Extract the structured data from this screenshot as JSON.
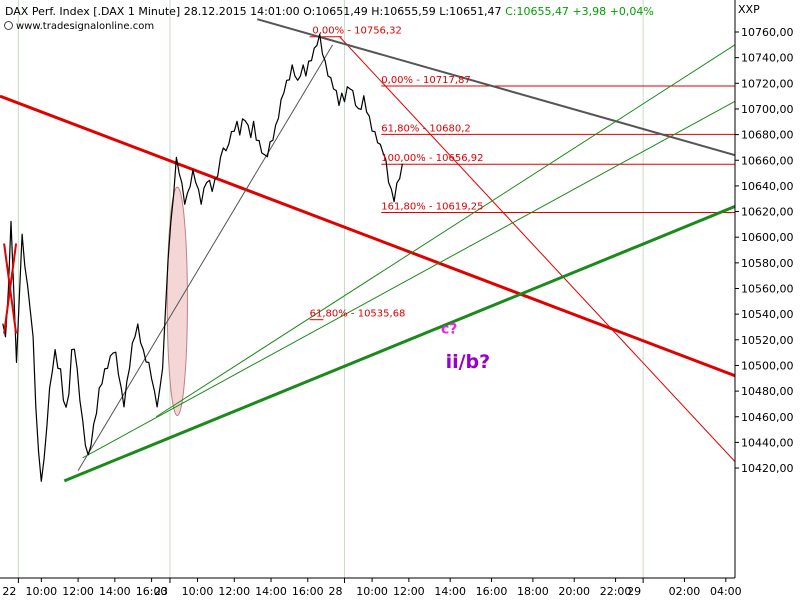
{
  "header": {
    "instrument": "DAX Perf. Index [.DAX",
    "interval": "1 Minute]",
    "datetime": "28.12.2015 14:01:00",
    "open": "O:10651,49",
    "high": "H:10655,59",
    "low": "L:10651,47",
    "close": "C:10655,47 +3,98 +0,04%",
    "source": "www.tradesignalonline.com",
    "currency": "XXP"
  },
  "colors": {
    "up_color": "#00a000",
    "price_line": "#000000",
    "red_thick": "#e00000",
    "red_thin": "#e00000",
    "green_thick": "#1a8a1a",
    "green_thin": "#1a8a1a",
    "gray_line": "#555555",
    "fib_line": "#e00000",
    "ellipse_fill": "#f5d6d6",
    "ellipse_stroke": "#c08080",
    "label_wave": "#9900cc",
    "label_c": "#ee22ee"
  },
  "chart_data": {
    "type": "line",
    "title": "DAX Perf. Index [.DAX 1 Minute]",
    "ylim": [
      10410,
      10770
    ],
    "y_ticks": [
      "10420,00",
      "10440,00",
      "10460,00",
      "10480,00",
      "10500,00",
      "10520,00",
      "10540,00",
      "10560,00",
      "10580,00",
      "10600,00",
      "10620,00",
      "10640,00",
      "10660,00",
      "10680,00",
      "10700,00",
      "10720,00",
      "10740,00",
      "10760,00"
    ],
    "x_axis": {
      "min": 0,
      "max": 80,
      "day_boundaries": [
        {
          "label": "22",
          "x": 2
        },
        {
          "label": "23",
          "x": 18.5
        },
        {
          "label": "28",
          "x": 37.5
        },
        {
          "label": "29",
          "x": 70
        }
      ],
      "ticks": [
        {
          "label": "10:00",
          "x": 4.5
        },
        {
          "label": "12:00",
          "x": 8.5
        },
        {
          "label": "14:00",
          "x": 12.5
        },
        {
          "label": "16:00",
          "x": 16.5
        },
        {
          "label": "10:00",
          "x": 21.5
        },
        {
          "label": "12:00",
          "x": 25.5
        },
        {
          "label": "14:00",
          "x": 29.5
        },
        {
          "label": "16:00",
          "x": 33.5
        },
        {
          "label": "10:00",
          "x": 40.5
        },
        {
          "label": "12:00",
          "x": 44.5
        },
        {
          "label": "14:00",
          "x": 49
        },
        {
          "label": "16:00",
          "x": 53.5
        },
        {
          "label": "18:00",
          "x": 58
        },
        {
          "label": "20:00",
          "x": 62.5
        },
        {
          "label": "22:00",
          "x": 67
        },
        {
          "label": "02:00",
          "x": 74.5
        },
        {
          "label": "04:00",
          "x": 79
        }
      ],
      "gridlines": [
        2,
        18.5,
        37.5,
        70
      ]
    },
    "series": [
      {
        "points": [
          [
            0.3,
            10535
          ],
          [
            0.6,
            10520
          ],
          [
            0.9,
            10560
          ],
          [
            1.2,
            10610
          ],
          [
            1.5,
            10560
          ],
          [
            1.8,
            10500
          ],
          [
            2.1,
            10555
          ],
          [
            2.4,
            10600
          ],
          [
            2.7,
            10580
          ],
          [
            3.0,
            10560
          ],
          [
            3.3,
            10545
          ],
          [
            3.6,
            10520
          ],
          [
            3.9,
            10470
          ],
          [
            4.2,
            10430
          ],
          [
            4.5,
            10412
          ],
          [
            4.8,
            10425
          ],
          [
            5.1,
            10455
          ],
          [
            5.4,
            10480
          ],
          [
            5.7,
            10498
          ],
          [
            6.0,
            10510
          ],
          [
            6.3,
            10500
          ],
          [
            6.6,
            10495
          ],
          [
            6.9,
            10475
          ],
          [
            7.2,
            10465
          ],
          [
            7.5,
            10480
          ],
          [
            7.8,
            10510
          ],
          [
            8.1,
            10515
          ],
          [
            8.4,
            10495
          ],
          [
            8.7,
            10475
          ],
          [
            9.0,
            10455
          ],
          [
            9.3,
            10440
          ],
          [
            9.6,
            10428
          ],
          [
            9.9,
            10440
          ],
          [
            10.2,
            10452
          ],
          [
            10.5,
            10465
          ],
          [
            10.8,
            10480
          ],
          [
            11.1,
            10488
          ],
          [
            11.4,
            10495
          ],
          [
            11.7,
            10500
          ],
          [
            12.0,
            10505
          ],
          [
            12.3,
            10512
          ],
          [
            12.6,
            10508
          ],
          [
            12.9,
            10495
          ],
          [
            13.2,
            10480
          ],
          [
            13.5,
            10470
          ],
          [
            13.8,
            10485
          ],
          [
            14.1,
            10500
          ],
          [
            14.4,
            10515
          ],
          [
            14.7,
            10525
          ],
          [
            15.0,
            10530
          ],
          [
            15.3,
            10520
          ],
          [
            15.6,
            10510
          ],
          [
            15.9,
            10505
          ],
          [
            16.2,
            10500
          ],
          [
            16.5,
            10492
          ],
          [
            16.8,
            10478
          ],
          [
            17.1,
            10470
          ],
          [
            17.4,
            10480
          ],
          [
            17.7,
            10500
          ],
          [
            18.0,
            10540
          ],
          [
            18.3,
            10585
          ],
          [
            18.6,
            10610
          ],
          [
            18.9,
            10635
          ],
          [
            19.2,
            10660
          ],
          [
            19.5,
            10652
          ],
          [
            19.8,
            10640
          ],
          [
            20.1,
            10628
          ],
          [
            20.4,
            10632
          ],
          [
            20.7,
            10642
          ],
          [
            21.0,
            10650
          ],
          [
            21.3,
            10645
          ],
          [
            21.6,
            10635
          ],
          [
            21.9,
            10628
          ],
          [
            22.2,
            10636
          ],
          [
            22.5,
            10645
          ],
          [
            22.8,
            10642
          ],
          [
            23.1,
            10638
          ],
          [
            23.4,
            10643
          ],
          [
            23.7,
            10650
          ],
          [
            24.0,
            10660
          ],
          [
            24.3,
            10672
          ],
          [
            24.6,
            10665
          ],
          [
            24.9,
            10675
          ],
          [
            25.2,
            10680
          ],
          [
            25.5,
            10685
          ],
          [
            25.8,
            10688
          ],
          [
            26.1,
            10682
          ],
          [
            26.4,
            10690
          ],
          [
            26.7,
            10693
          ],
          [
            27.0,
            10685
          ],
          [
            27.3,
            10680
          ],
          [
            27.6,
            10688
          ],
          [
            27.9,
            10678
          ],
          [
            28.2,
            10673
          ],
          [
            28.5,
            10668
          ],
          [
            28.8,
            10662
          ],
          [
            29.1,
            10665
          ],
          [
            29.4,
            10672
          ],
          [
            29.7,
            10678
          ],
          [
            30.0,
            10685
          ],
          [
            30.3,
            10695
          ],
          [
            30.6,
            10705
          ],
          [
            30.9,
            10715
          ],
          [
            31.2,
            10720
          ],
          [
            31.5,
            10725
          ],
          [
            31.8,
            10732
          ],
          [
            32.1,
            10728
          ],
          [
            32.4,
            10720
          ],
          [
            32.7,
            10728
          ],
          [
            33.0,
            10732
          ],
          [
            33.3,
            10728
          ],
          [
            33.6,
            10735
          ],
          [
            33.9,
            10740
          ],
          [
            34.2,
            10745
          ],
          [
            34.5,
            10752
          ],
          [
            34.8,
            10756
          ],
          [
            35.1,
            10745
          ],
          [
            35.4,
            10735
          ],
          [
            35.7,
            10728
          ],
          [
            36.0,
            10722
          ],
          [
            36.3,
            10718
          ],
          [
            36.6,
            10712
          ],
          [
            36.9,
            10705
          ],
          [
            37.2,
            10710
          ],
          [
            37.5,
            10708
          ],
          [
            37.8,
            10715
          ],
          [
            38.1,
            10718
          ],
          [
            38.4,
            10712
          ],
          [
            38.7,
            10705
          ],
          [
            39.0,
            10698
          ],
          [
            39.3,
            10702
          ],
          [
            39.6,
            10708
          ],
          [
            39.9,
            10700
          ],
          [
            40.2,
            10692
          ],
          [
            40.5,
            10685
          ],
          [
            40.8,
            10680
          ],
          [
            41.1,
            10676
          ],
          [
            41.4,
            10670
          ],
          [
            41.7,
            10668
          ],
          [
            42.0,
            10658
          ],
          [
            42.3,
            10645
          ],
          [
            42.6,
            10635
          ],
          [
            42.9,
            10630
          ],
          [
            43.2,
            10640
          ],
          [
            43.5,
            10648
          ],
          [
            43.8,
            10655
          ]
        ]
      }
    ],
    "annotations": [
      {
        "text": "0,00% - 10756,32",
        "x": 34.0,
        "y": 10756.32
      },
      {
        "text": "0,00% - 10717,87",
        "x": 41.5,
        "y": 10717.87
      },
      {
        "text": "61,80% - 10680,2",
        "x": 41.5,
        "y": 10680.2
      },
      {
        "text": "100,00% - 10656,92",
        "x": 41.5,
        "y": 10656.92
      },
      {
        "text": "161,80% - 10619,25",
        "x": 41.5,
        "y": 10619.25
      },
      {
        "text": "61,80% - 10535,68",
        "x": 33.7,
        "y": 10535.68
      },
      {
        "text": "c?",
        "x": 48.0,
        "y": 10525
      },
      {
        "text": "ii/b?",
        "x": 48.5,
        "y": 10498
      }
    ],
    "fib_levels": [
      {
        "y": 10756.32,
        "x0": 33.7,
        "x1": 37.2
      },
      {
        "y": 10717.87,
        "x0": 41.5,
        "x1": 80
      },
      {
        "y": 10680.2,
        "x0": 41.5,
        "x1": 80
      },
      {
        "y": 10656.92,
        "x0": 41.5,
        "x1": 80
      },
      {
        "y": 10619.25,
        "x0": 41.5,
        "x1": 80
      },
      {
        "y": 10535.68,
        "x0": 33.7,
        "x1": 35.2
      }
    ],
    "trend_lines": [
      {
        "style": "red_thick",
        "x1": 0,
        "y1": 10710,
        "x2": 80,
        "y2": 10492
      },
      {
        "style": "red_thin",
        "x1": 37.0,
        "y1": 10756,
        "x2": 80,
        "y2": 10425
      },
      {
        "style": "gray_line",
        "x1": 28.0,
        "y1": 10770,
        "x2": 80,
        "y2": 10664
      },
      {
        "style": "gray_thin",
        "x1": 8.5,
        "y1": 10418,
        "x2": 36.2,
        "y2": 10750
      },
      {
        "style": "green_thick",
        "x1": 7.0,
        "y1": 10410,
        "x2": 80,
        "y2": 10624
      },
      {
        "style": "green_thin",
        "x1": 9.0,
        "y1": 10428,
        "x2": 80,
        "y2": 10706
      },
      {
        "style": "green_thin",
        "x1": 17.0,
        "y1": 10460,
        "x2": 80,
        "y2": 10750
      }
    ],
    "ellipse": {
      "cx": 19.3,
      "cy": 10550,
      "rx": 1.1,
      "ry": 89
    },
    "red_x_marker": {
      "x": 1.1,
      "y": 10560
    },
    "grid": false
  }
}
